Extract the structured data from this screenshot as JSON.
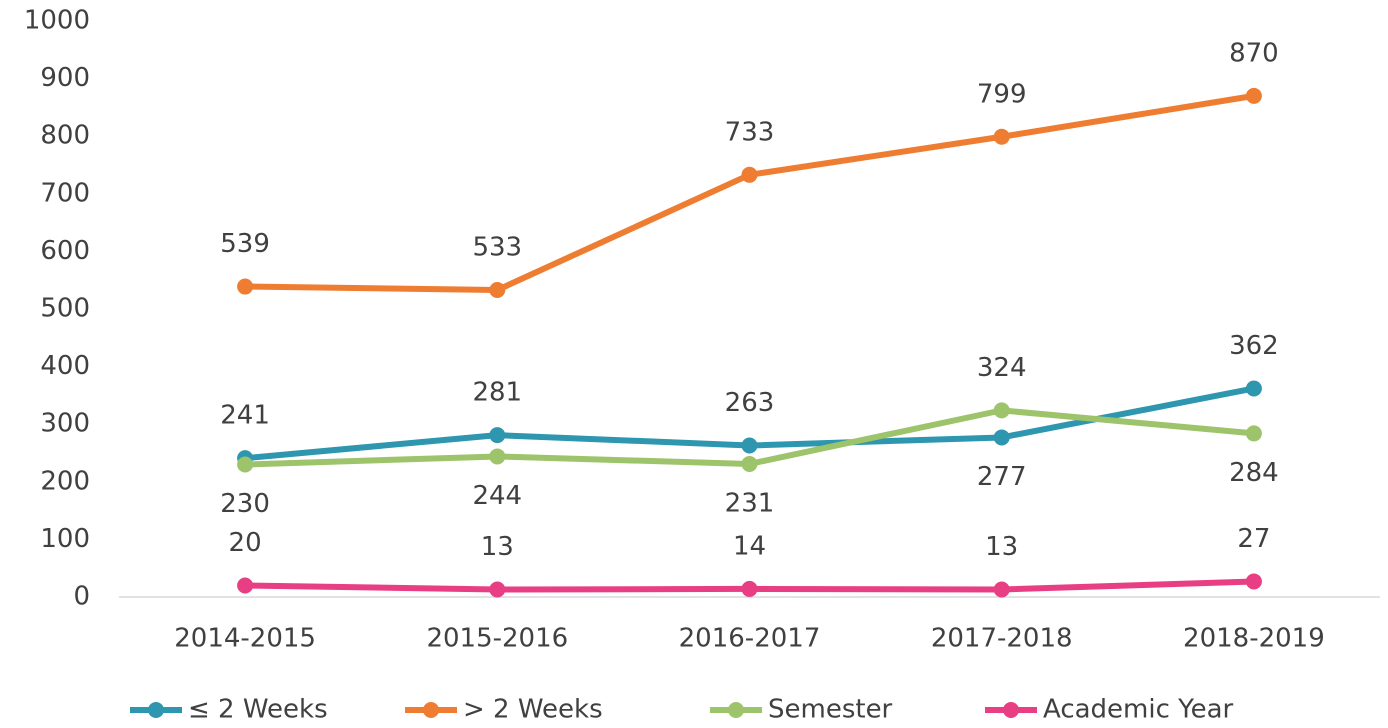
{
  "chart_data": {
    "type": "line",
    "categories": [
      "2014-2015",
      "2015-2016",
      "2016-2017",
      "2017-2018",
      "2018-2019"
    ],
    "series": [
      {
        "name": "≤ 2 Weeks",
        "color": "#2e96af",
        "values": [
          241,
          281,
          263,
          277,
          362
        ]
      },
      {
        "name": "> 2 Weeks",
        "color": "#ee7d31",
        "values": [
          539,
          533,
          733,
          799,
          870
        ]
      },
      {
        "name": "Semester",
        "color": "#9dc36b",
        "values": [
          230,
          244,
          231,
          324,
          284
        ]
      },
      {
        "name": "Academic Year",
        "color": "#e83e84",
        "values": [
          20,
          13,
          14,
          13,
          27
        ]
      }
    ],
    "ylim": [
      0,
      1000
    ],
    "yticks": [
      0,
      100,
      200,
      300,
      400,
      500,
      600,
      700,
      800,
      900,
      1000
    ],
    "grid": false,
    "legend": "bottom"
  }
}
